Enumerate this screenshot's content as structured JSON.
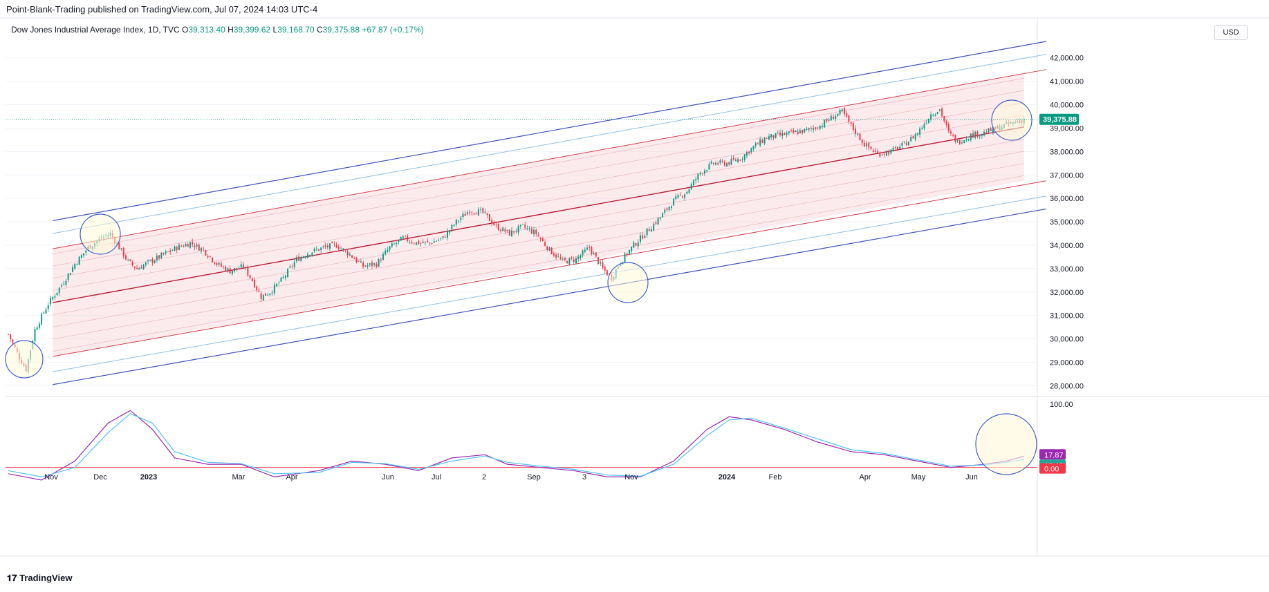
{
  "header": {
    "publisher": "Point-Blank-Trading published on TradingView.com, Jul 07, 2024 14:03 UTC-4"
  },
  "symbol": {
    "name": "Dow Jones Industrial Average Index, 1D, TVC",
    "open_label": "O",
    "open": "39,313.40",
    "high_label": "H",
    "high": "39,399.62",
    "low_label": "L",
    "low": "39,168.70",
    "close_label": "C",
    "close": "39,375.88",
    "change": "+67.87 (+0.17%)"
  },
  "currency": "USD",
  "footer": {
    "logo_text": "TradingView"
  },
  "colors": {
    "up": "#089981",
    "down": "#f23645",
    "channel_outer": "#3f51b5",
    "channel_inner_blue": "#90bfe6",
    "channel_red": "#d23b4b",
    "channel_mid": "#b71c38",
    "stoch_k": "#9c27b0",
    "stoch_d": "#4fc3f7",
    "circle": "#3f5ecc"
  },
  "chart_data": [
    {
      "type": "candlestick",
      "title": "Dow Jones Industrial Average Index, 1D, TVC",
      "ylim": [
        27600,
        42700
      ],
      "yticks": [
        "42,000.00",
        "41,000.00",
        "40,000.00",
        "39,000.00",
        "38,000.00",
        "37,000.00",
        "36,000.00",
        "35,000.00",
        "34,000.00",
        "33,000.00",
        "32,000.00",
        "31,000.00",
        "30,000.00",
        "29,000.00",
        "28,000.00"
      ],
      "ytick_values": [
        42000,
        41000,
        40000,
        39000,
        38000,
        37000,
        36000,
        35000,
        34000,
        33000,
        32000,
        31000,
        30000,
        29000,
        28000
      ],
      "xticks": [
        "Nov",
        "Dec",
        "2023",
        "Mar",
        "Apr",
        "Jun",
        "Jul",
        "2",
        "Sep",
        "3",
        "Nov",
        "2024",
        "Feb",
        "Apr",
        "May",
        "Jun"
      ],
      "last_price_label": "39,375.88",
      "approx_close_path": [
        [
          0,
          30200
        ],
        [
          5,
          29200
        ],
        [
          8,
          28700
        ],
        [
          12,
          30400
        ],
        [
          18,
          31500
        ],
        [
          24,
          32300
        ],
        [
          30,
          33200
        ],
        [
          36,
          33900
        ],
        [
          42,
          34300
        ],
        [
          46,
          34500
        ],
        [
          50,
          33900
        ],
        [
          54,
          33300
        ],
        [
          58,
          33000
        ],
        [
          64,
          33300
        ],
        [
          70,
          33600
        ],
        [
          76,
          33900
        ],
        [
          82,
          34100
        ],
        [
          88,
          33800
        ],
        [
          94,
          33200
        ],
        [
          100,
          32900
        ],
        [
          106,
          33100
        ],
        [
          110,
          32500
        ],
        [
          114,
          31800
        ],
        [
          118,
          32000
        ],
        [
          124,
          32600
        ],
        [
          130,
          33400
        ],
        [
          136,
          33700
        ],
        [
          142,
          33900
        ],
        [
          148,
          34000
        ],
        [
          154,
          33600
        ],
        [
          160,
          33100
        ],
        [
          166,
          33200
        ],
        [
          172,
          33900
        ],
        [
          178,
          34300
        ],
        [
          184,
          34100
        ],
        [
          190,
          34100
        ],
        [
          196,
          34300
        ],
        [
          202,
          35000
        ],
        [
          208,
          35500
        ],
        [
          214,
          35400
        ],
        [
          220,
          34800
        ],
        [
          226,
          34500
        ],
        [
          232,
          34800
        ],
        [
          238,
          34500
        ],
        [
          244,
          33800
        ],
        [
          250,
          33300
        ],
        [
          256,
          33400
        ],
        [
          262,
          33900
        ],
        [
          268,
          33000
        ],
        [
          272,
          32600
        ],
        [
          276,
          33300
        ],
        [
          282,
          34000
        ],
        [
          288,
          34600
        ],
        [
          294,
          35200
        ],
        [
          300,
          35900
        ],
        [
          306,
          36300
        ],
        [
          312,
          37100
        ],
        [
          318,
          37500
        ],
        [
          324,
          37500
        ],
        [
          330,
          37700
        ],
        [
          336,
          38200
        ],
        [
          342,
          38600
        ],
        [
          348,
          38700
        ],
        [
          354,
          38800
        ],
        [
          360,
          38900
        ],
        [
          366,
          39100
        ],
        [
          372,
          39500
        ],
        [
          376,
          39700
        ],
        [
          380,
          39100
        ],
        [
          386,
          38300
        ],
        [
          392,
          37900
        ],
        [
          398,
          38000
        ],
        [
          404,
          38300
        ],
        [
          410,
          38800
        ],
        [
          416,
          39600
        ],
        [
          420,
          39800
        ],
        [
          424,
          38800
        ],
        [
          428,
          38400
        ],
        [
          434,
          38700
        ],
        [
          440,
          38800
        ],
        [
          446,
          39000
        ],
        [
          452,
          39200
        ],
        [
          458,
          39376
        ]
      ]
    },
    {
      "type": "line",
      "title": "",
      "ylim": [
        -20,
        100
      ],
      "yticks": [
        "100.00"
      ],
      "series": [
        {
          "values": [
            [
              0,
              -10
            ],
            [
              15,
              -20
            ],
            [
              30,
              10
            ],
            [
              45,
              70
            ],
            [
              55,
              90
            ],
            [
              65,
              60
            ],
            [
              75,
              15
            ],
            [
              90,
              5
            ],
            [
              105,
              5
            ],
            [
              120,
              -15
            ],
            [
              140,
              -5
            ],
            [
              155,
              10
            ],
            [
              170,
              5
            ],
            [
              185,
              -5
            ],
            [
              200,
              15
            ],
            [
              215,
              20
            ],
            [
              225,
              5
            ],
            [
              240,
              0
            ],
            [
              255,
              -5
            ],
            [
              270,
              -15
            ],
            [
              285,
              -15
            ],
            [
              300,
              10
            ],
            [
              315,
              60
            ],
            [
              325,
              80
            ],
            [
              335,
              75
            ],
            [
              350,
              60
            ],
            [
              365,
              40
            ],
            [
              380,
              25
            ],
            [
              395,
              20
            ],
            [
              410,
              10
            ],
            [
              425,
              0
            ],
            [
              440,
              5
            ],
            [
              450,
              10
            ],
            [
              458,
              17.87
            ]
          ]
        },
        {
          "values": [
            [
              0,
              -5
            ],
            [
              15,
              -15
            ],
            [
              30,
              0
            ],
            [
              45,
              55
            ],
            [
              55,
              85
            ],
            [
              65,
              70
            ],
            [
              75,
              25
            ],
            [
              90,
              8
            ],
            [
              105,
              6
            ],
            [
              120,
              -10
            ],
            [
              140,
              -8
            ],
            [
              155,
              8
            ],
            [
              170,
              6
            ],
            [
              185,
              -3
            ],
            [
              200,
              10
            ],
            [
              215,
              18
            ],
            [
              225,
              8
            ],
            [
              240,
              2
            ],
            [
              255,
              -3
            ],
            [
              270,
              -12
            ],
            [
              285,
              -14
            ],
            [
              300,
              5
            ],
            [
              315,
              50
            ],
            [
              325,
              75
            ],
            [
              335,
              78
            ],
            [
              350,
              62
            ],
            [
              365,
              45
            ],
            [
              380,
              28
            ],
            [
              395,
              22
            ],
            [
              410,
              12
            ],
            [
              425,
              2
            ],
            [
              440,
              4
            ],
            [
              450,
              8
            ],
            [
              458,
              12.4
            ]
          ]
        }
      ],
      "labels": [
        "17.87",
        "12.40",
        "0.00"
      ]
    }
  ]
}
